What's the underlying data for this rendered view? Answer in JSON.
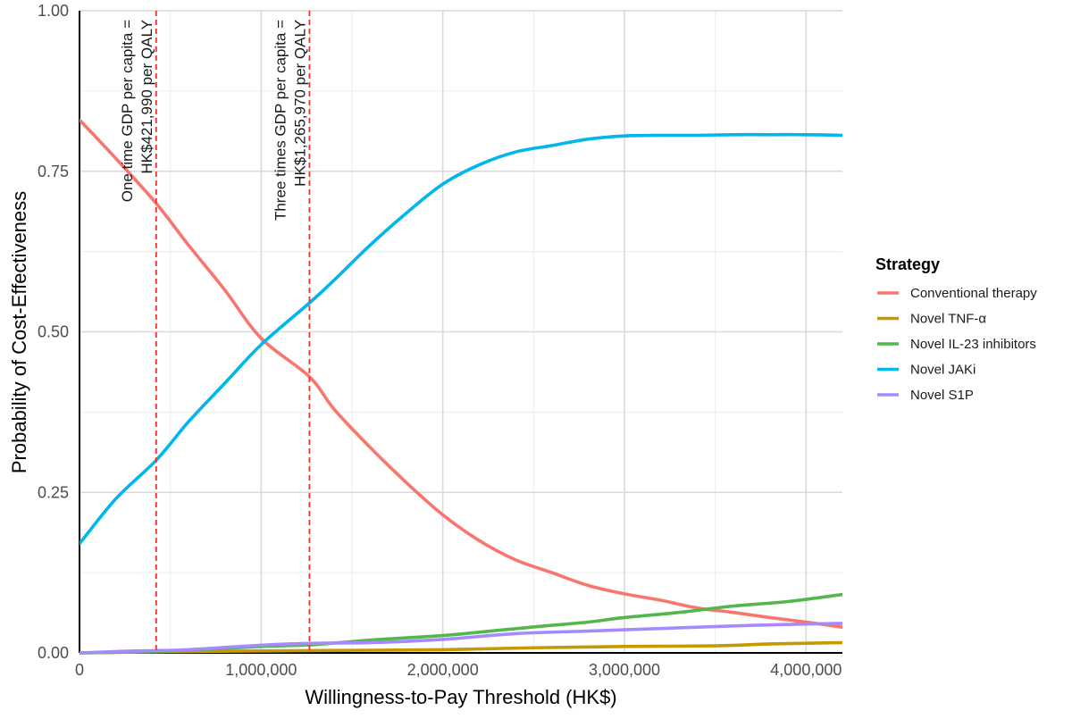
{
  "chart_data": {
    "type": "line",
    "title": "",
    "xlabel": "Willingness-to-Pay Threshold (HK$)",
    "ylabel": "Probability of Cost-Effectiveness",
    "xlim": [
      0,
      4200000
    ],
    "ylim": [
      0,
      1
    ],
    "x_ticks": [
      0,
      1000000,
      2000000,
      3000000,
      4000000
    ],
    "x_tick_labels": [
      "0",
      "1,000,000",
      "2,000,000",
      "3,000,000",
      "4,000,000"
    ],
    "y_ticks": [
      0,
      0.25,
      0.5,
      0.75,
      1.0
    ],
    "y_tick_labels": [
      "0.00",
      "0.25",
      "0.50",
      "0.75",
      "1.00"
    ],
    "grid": true,
    "legend": {
      "title": "Strategy",
      "placement": "right"
    },
    "series": [
      {
        "name": "Conventional therapy",
        "color": "#F8766D",
        "x": [
          0,
          200000,
          421990,
          600000,
          800000,
          1000000,
          1265970,
          1400000,
          1600000,
          1800000,
          2000000,
          2200000,
          2400000,
          2600000,
          2800000,
          3000000,
          3200000,
          3400000,
          3600000,
          3800000,
          4000000,
          4200000
        ],
        "y": [
          0.83,
          0.77,
          0.7,
          0.635,
          0.565,
          0.49,
          0.43,
          0.38,
          0.32,
          0.265,
          0.215,
          0.175,
          0.145,
          0.125,
          0.105,
          0.092,
          0.082,
          0.07,
          0.063,
          0.055,
          0.048,
          0.04
        ]
      },
      {
        "name": "Novel TNF-α",
        "color": "#C49A00",
        "x": [
          0,
          500000,
          1000000,
          1500000,
          2000000,
          2500000,
          3000000,
          3500000,
          3800000,
          4000000,
          4200000
        ],
        "y": [
          0.0,
          0.002,
          0.003,
          0.004,
          0.005,
          0.008,
          0.01,
          0.011,
          0.014,
          0.015,
          0.016
        ]
      },
      {
        "name": "Novel IL-23 inhibitors",
        "color": "#53B74C",
        "x": [
          0,
          500000,
          1000000,
          1300000,
          1600000,
          2000000,
          2300000,
          2600000,
          2800000,
          3000000,
          3300000,
          3600000,
          3900000,
          4200000
        ],
        "y": [
          0.0,
          0.003,
          0.01,
          0.013,
          0.02,
          0.027,
          0.035,
          0.043,
          0.048,
          0.055,
          0.063,
          0.073,
          0.08,
          0.091
        ]
      },
      {
        "name": "Novel JAKi",
        "color": "#00B6EB",
        "x": [
          0,
          200000,
          421990,
          600000,
          800000,
          1000000,
          1265970,
          1400000,
          1600000,
          1800000,
          2000000,
          2200000,
          2400000,
          2600000,
          2800000,
          3000000,
          3200000,
          3400000,
          3600000,
          3800000,
          4000000,
          4200000
        ],
        "y": [
          0.17,
          0.24,
          0.3,
          0.36,
          0.42,
          0.48,
          0.545,
          0.58,
          0.635,
          0.685,
          0.73,
          0.76,
          0.78,
          0.79,
          0.8,
          0.805,
          0.806,
          0.806,
          0.807,
          0.807,
          0.807,
          0.806
        ]
      },
      {
        "name": "Novel S1P",
        "color": "#A58AFF",
        "x": [
          0,
          300000,
          600000,
          1000000,
          1300000,
          1600000,
          2000000,
          2400000,
          2800000,
          3200000,
          3600000,
          4000000,
          4200000
        ],
        "y": [
          0.0,
          0.003,
          0.005,
          0.012,
          0.015,
          0.016,
          0.021,
          0.03,
          0.034,
          0.038,
          0.042,
          0.045,
          0.046
        ]
      }
    ],
    "reference_lines": [
      {
        "x": 421990,
        "color": "#F0322D",
        "label_line1": "One time GDP per capita =",
        "label_line2": "HK$421,990 per QALY"
      },
      {
        "x": 1265970,
        "color": "#F0322D",
        "label_line1": "Three times GDP per capita =",
        "label_line2": "HK$1,265,970 per QALY"
      }
    ]
  }
}
